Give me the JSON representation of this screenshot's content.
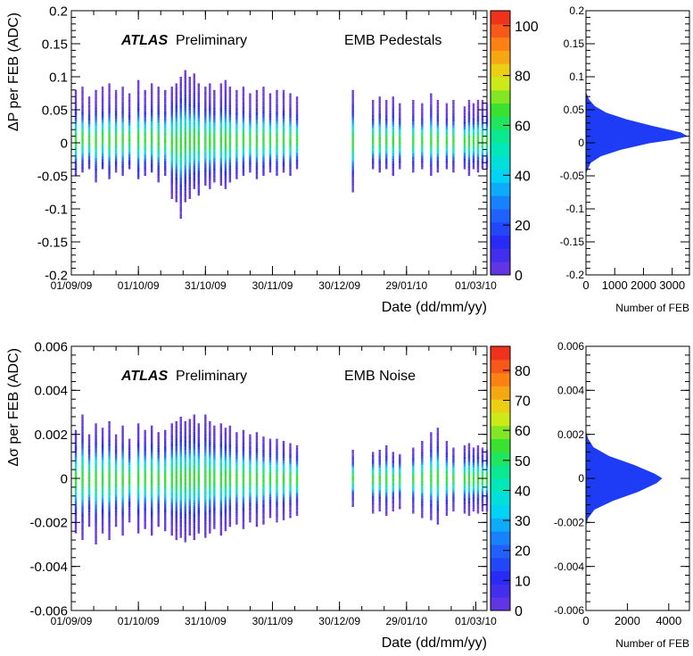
{
  "chart_data": [
    {
      "type": "heatmap",
      "panel": "top-main",
      "label_atlas": "ATLAS",
      "label_prelim": "Preliminary",
      "label_text": "EMB Pedestals",
      "ylabel": "ΔP per FEB (ADC)",
      "xlabel": "Date (dd/mm/yy)",
      "ylim": [
        -0.2,
        0.2
      ],
      "yticks": [
        "0.2",
        "0.15",
        "0.1",
        "0.05",
        "0",
        "-0.05",
        "-0.1",
        "-0.15",
        "-0.2"
      ],
      "xticks": [
        "01/09/09",
        "01/10/09",
        "31/10/09",
        "30/11/09",
        "30/12/09",
        "29/01/10",
        "01/03/10"
      ],
      "colorbar_ticks": [
        "100",
        "80",
        "60",
        "40",
        "20",
        "0"
      ],
      "colorbar_max": 106,
      "runs": [
        {
          "date": "2009-09-03",
          "lo": -0.05,
          "hi": 0.08
        },
        {
          "date": "2009-09-06",
          "lo": -0.045,
          "hi": 0.085
        },
        {
          "date": "2009-09-09",
          "lo": -0.04,
          "hi": 0.07
        },
        {
          "date": "2009-09-12",
          "lo": -0.06,
          "hi": 0.08
        },
        {
          "date": "2009-09-15",
          "lo": -0.04,
          "hi": 0.085
        },
        {
          "date": "2009-09-18",
          "lo": -0.055,
          "hi": 0.09
        },
        {
          "date": "2009-09-21",
          "lo": -0.045,
          "hi": 0.08
        },
        {
          "date": "2009-09-24",
          "lo": -0.05,
          "hi": 0.085
        },
        {
          "date": "2009-09-27",
          "lo": -0.04,
          "hi": 0.075
        },
        {
          "date": "2009-10-01",
          "lo": -0.055,
          "hi": 0.095
        },
        {
          "date": "2009-10-04",
          "lo": -0.05,
          "hi": 0.08
        },
        {
          "date": "2009-10-07",
          "lo": -0.045,
          "hi": 0.09
        },
        {
          "date": "2009-10-10",
          "lo": -0.06,
          "hi": 0.085
        },
        {
          "date": "2009-10-13",
          "lo": -0.05,
          "hi": 0.08
        },
        {
          "date": "2009-10-16",
          "lo": -0.085,
          "hi": 0.085
        },
        {
          "date": "2009-10-18",
          "lo": -0.09,
          "hi": 0.09
        },
        {
          "date": "2009-10-20",
          "lo": -0.115,
          "hi": 0.1
        },
        {
          "date": "2009-10-22",
          "lo": -0.09,
          "hi": 0.11
        },
        {
          "date": "2009-10-24",
          "lo": -0.085,
          "hi": 0.1
        },
        {
          "date": "2009-10-26",
          "lo": -0.07,
          "hi": 0.105
        },
        {
          "date": "2009-10-28",
          "lo": -0.08,
          "hi": 0.09
        },
        {
          "date": "2009-10-31",
          "lo": -0.065,
          "hi": 0.085
        },
        {
          "date": "2009-11-02",
          "lo": -0.07,
          "hi": 0.09
        },
        {
          "date": "2009-11-04",
          "lo": -0.06,
          "hi": 0.08
        },
        {
          "date": "2009-11-07",
          "lo": -0.065,
          "hi": 0.09
        },
        {
          "date": "2009-11-09",
          "lo": -0.07,
          "hi": 0.095
        },
        {
          "date": "2009-11-11",
          "lo": -0.06,
          "hi": 0.085
        },
        {
          "date": "2009-11-14",
          "lo": -0.055,
          "hi": 0.08
        },
        {
          "date": "2009-11-17",
          "lo": -0.05,
          "hi": 0.085
        },
        {
          "date": "2009-11-20",
          "lo": -0.045,
          "hi": 0.075
        },
        {
          "date": "2009-11-23",
          "lo": -0.055,
          "hi": 0.08
        },
        {
          "date": "2009-11-26",
          "lo": -0.05,
          "hi": 0.085
        },
        {
          "date": "2009-11-29",
          "lo": -0.045,
          "hi": 0.075
        },
        {
          "date": "2009-12-02",
          "lo": -0.05,
          "hi": 0.08
        },
        {
          "date": "2009-12-05",
          "lo": -0.045,
          "hi": 0.08
        },
        {
          "date": "2009-12-08",
          "lo": -0.05,
          "hi": 0.075
        },
        {
          "date": "2009-12-11",
          "lo": -0.04,
          "hi": 0.07
        },
        {
          "date": "2010-01-05",
          "lo": -0.075,
          "hi": 0.08
        },
        {
          "date": "2010-01-14",
          "lo": -0.04,
          "hi": 0.065
        },
        {
          "date": "2010-01-17",
          "lo": -0.045,
          "hi": 0.07
        },
        {
          "date": "2010-01-20",
          "lo": -0.04,
          "hi": 0.065
        },
        {
          "date": "2010-01-23",
          "lo": -0.05,
          "hi": 0.07
        },
        {
          "date": "2010-01-26",
          "lo": -0.04,
          "hi": 0.06
        },
        {
          "date": "2010-02-01",
          "lo": -0.045,
          "hi": 0.065
        },
        {
          "date": "2010-02-05",
          "lo": -0.04,
          "hi": 0.06
        },
        {
          "date": "2010-02-09",
          "lo": -0.05,
          "hi": 0.075
        },
        {
          "date": "2010-02-12",
          "lo": -0.045,
          "hi": 0.065
        },
        {
          "date": "2010-02-16",
          "lo": -0.04,
          "hi": 0.06
        },
        {
          "date": "2010-02-19",
          "lo": -0.045,
          "hi": 0.065
        },
        {
          "date": "2010-02-24",
          "lo": -0.04,
          "hi": 0.055
        },
        {
          "date": "2010-02-26",
          "lo": -0.05,
          "hi": 0.065
        },
        {
          "date": "2010-02-28",
          "lo": -0.04,
          "hi": 0.06
        },
        {
          "date": "2010-03-02",
          "lo": -0.045,
          "hi": 0.065
        },
        {
          "date": "2010-03-04",
          "lo": -0.04,
          "hi": 0.065
        },
        {
          "date": "2010-03-06",
          "lo": -0.04,
          "hi": 0.06
        }
      ]
    },
    {
      "type": "bar",
      "panel": "top-projection",
      "orientation": "horizontal",
      "xlabel": "Number of FEB",
      "ylim": [
        -0.2,
        0.2
      ],
      "xlim": [
        0,
        3600
      ],
      "yticks": [
        "0.2",
        "0.15",
        "0.1",
        "0.05",
        "0",
        "-0.05",
        "-0.1",
        "-0.15",
        "-0.2"
      ],
      "xticks": [
        "0",
        "1000",
        "2000",
        "3000"
      ],
      "profile": [
        {
          "y": 0.075,
          "count": 0
        },
        {
          "y": 0.065,
          "count": 100
        },
        {
          "y": 0.055,
          "count": 300
        },
        {
          "y": 0.045,
          "count": 700
        },
        {
          "y": 0.035,
          "count": 1400
        },
        {
          "y": 0.025,
          "count": 2300
        },
        {
          "y": 0.015,
          "count": 3300
        },
        {
          "y": 0.01,
          "count": 3500
        },
        {
          "y": 0.005,
          "count": 3000
        },
        {
          "y": 0.0,
          "count": 2200
        },
        {
          "y": -0.01,
          "count": 1200
        },
        {
          "y": -0.02,
          "count": 500
        },
        {
          "y": -0.03,
          "count": 150
        },
        {
          "y": -0.045,
          "count": 0
        }
      ]
    },
    {
      "type": "heatmap",
      "panel": "bottom-main",
      "label_atlas": "ATLAS",
      "label_prelim": "Preliminary",
      "label_text": "EMB Noise",
      "ylabel": "Δσ per FEB (ADC)",
      "xlabel": "Date (dd/mm/yy)",
      "ylim": [
        -0.006,
        0.006
      ],
      "yticks": [
        "0.006",
        "0.004",
        "0.002",
        "0",
        "-0.002",
        "-0.004",
        "-0.006"
      ],
      "xticks": [
        "01/09/09",
        "01/10/09",
        "31/10/09",
        "30/11/09",
        "30/12/09",
        "29/01/10",
        "01/03/10"
      ],
      "colorbar_ticks": [
        "80",
        "70",
        "60",
        "50",
        "40",
        "30",
        "20",
        "10",
        "0"
      ],
      "colorbar_max": 88,
      "runs": [
        {
          "date": "2009-09-03",
          "lo": -0.0025,
          "hi": 0.0022
        },
        {
          "date": "2009-09-06",
          "lo": -0.0028,
          "hi": 0.0029
        },
        {
          "date": "2009-09-09",
          "lo": -0.0022,
          "hi": 0.002
        },
        {
          "date": "2009-09-12",
          "lo": -0.003,
          "hi": 0.0025
        },
        {
          "date": "2009-09-15",
          "lo": -0.0025,
          "hi": 0.0023
        },
        {
          "date": "2009-09-18",
          "lo": -0.0028,
          "hi": 0.0026
        },
        {
          "date": "2009-09-21",
          "lo": -0.0022,
          "hi": 0.002
        },
        {
          "date": "2009-09-24",
          "lo": -0.0026,
          "hi": 0.0024
        },
        {
          "date": "2009-09-27",
          "lo": -0.002,
          "hi": 0.0018
        },
        {
          "date": "2009-10-01",
          "lo": -0.0025,
          "hi": 0.0025
        },
        {
          "date": "2009-10-04",
          "lo": -0.0023,
          "hi": 0.0022
        },
        {
          "date": "2009-10-07",
          "lo": -0.0026,
          "hi": 0.0024
        },
        {
          "date": "2009-10-10",
          "lo": -0.0022,
          "hi": 0.0021
        },
        {
          "date": "2009-10-13",
          "lo": -0.0024,
          "hi": 0.0022
        },
        {
          "date": "2009-10-16",
          "lo": -0.0026,
          "hi": 0.0025
        },
        {
          "date": "2009-10-18",
          "lo": -0.0028,
          "hi": 0.0026
        },
        {
          "date": "2009-10-20",
          "lo": -0.0027,
          "hi": 0.0028
        },
        {
          "date": "2009-10-22",
          "lo": -0.0029,
          "hi": 0.0026
        },
        {
          "date": "2009-10-24",
          "lo": -0.0026,
          "hi": 0.0027
        },
        {
          "date": "2009-10-26",
          "lo": -0.0028,
          "hi": 0.0029
        },
        {
          "date": "2009-10-28",
          "lo": -0.0025,
          "hi": 0.0025
        },
        {
          "date": "2009-10-31",
          "lo": -0.0027,
          "hi": 0.0029
        },
        {
          "date": "2009-11-02",
          "lo": -0.0025,
          "hi": 0.0026
        },
        {
          "date": "2009-11-04",
          "lo": -0.0023,
          "hi": 0.0024
        },
        {
          "date": "2009-11-07",
          "lo": -0.0026,
          "hi": 0.0025
        },
        {
          "date": "2009-11-09",
          "lo": -0.0024,
          "hi": 0.0023
        },
        {
          "date": "2009-11-11",
          "lo": -0.0022,
          "hi": 0.0024
        },
        {
          "date": "2009-11-14",
          "lo": -0.0021,
          "hi": 0.0021
        },
        {
          "date": "2009-11-17",
          "lo": -0.0023,
          "hi": 0.0022
        },
        {
          "date": "2009-11-20",
          "lo": -0.002,
          "hi": 0.002
        },
        {
          "date": "2009-11-23",
          "lo": -0.0022,
          "hi": 0.0021
        },
        {
          "date": "2009-11-26",
          "lo": -0.0021,
          "hi": 0.0019
        },
        {
          "date": "2009-11-29",
          "lo": -0.0018,
          "hi": 0.0018
        },
        {
          "date": "2009-12-02",
          "lo": -0.002,
          "hi": 0.0018
        },
        {
          "date": "2009-12-05",
          "lo": -0.0019,
          "hi": 0.0017
        },
        {
          "date": "2009-12-08",
          "lo": -0.0018,
          "hi": 0.0016
        },
        {
          "date": "2009-12-11",
          "lo": -0.0017,
          "hi": 0.0015
        },
        {
          "date": "2010-01-05",
          "lo": -0.0013,
          "hi": 0.0013
        },
        {
          "date": "2010-01-14",
          "lo": -0.0016,
          "hi": 0.0012
        },
        {
          "date": "2010-01-17",
          "lo": -0.0015,
          "hi": 0.0013
        },
        {
          "date": "2010-01-20",
          "lo": -0.0017,
          "hi": 0.0015
        },
        {
          "date": "2010-01-23",
          "lo": -0.0015,
          "hi": 0.0012
        },
        {
          "date": "2010-01-26",
          "lo": -0.0014,
          "hi": 0.0011
        },
        {
          "date": "2010-02-01",
          "lo": -0.0016,
          "hi": 0.0014
        },
        {
          "date": "2010-02-05",
          "lo": -0.0018,
          "hi": 0.0017
        },
        {
          "date": "2010-02-09",
          "lo": -0.0019,
          "hi": 0.0021
        },
        {
          "date": "2010-02-12",
          "lo": -0.0021,
          "hi": 0.0023
        },
        {
          "date": "2010-02-16",
          "lo": -0.0017,
          "hi": 0.0017
        },
        {
          "date": "2010-02-19",
          "lo": -0.0015,
          "hi": 0.0014
        },
        {
          "date": "2010-02-24",
          "lo": -0.0016,
          "hi": 0.0015
        },
        {
          "date": "2010-02-26",
          "lo": -0.0017,
          "hi": 0.0016
        },
        {
          "date": "2010-02-28",
          "lo": -0.0015,
          "hi": 0.0014
        },
        {
          "date": "2010-03-02",
          "lo": -0.0016,
          "hi": 0.0015
        },
        {
          "date": "2010-03-04",
          "lo": -0.0015,
          "hi": 0.0014
        },
        {
          "date": "2010-03-06",
          "lo": -0.0015,
          "hi": 0.0013
        }
      ]
    },
    {
      "type": "bar",
      "panel": "bottom-projection",
      "orientation": "horizontal",
      "xlabel": "Number of FEB",
      "ylim": [
        -0.006,
        0.006
      ],
      "xlim": [
        0,
        5000
      ],
      "yticks": [
        "0.006",
        "0.004",
        "0.002",
        "0",
        "-0.002",
        "-0.004",
        "-0.006"
      ],
      "xticks": [
        "0",
        "2000",
        "4000"
      ],
      "profile": [
        {
          "y": 0.0021,
          "count": 0
        },
        {
          "y": 0.0018,
          "count": 80
        },
        {
          "y": 0.0014,
          "count": 350
        },
        {
          "y": 0.001,
          "count": 1100
        },
        {
          "y": 0.0006,
          "count": 2300
        },
        {
          "y": 0.0002,
          "count": 3300
        },
        {
          "y": 0.0,
          "count": 3650
        },
        {
          "y": -0.0002,
          "count": 3400
        },
        {
          "y": -0.0006,
          "count": 2500
        },
        {
          "y": -0.001,
          "count": 1300
        },
        {
          "y": -0.0014,
          "count": 400
        },
        {
          "y": -0.0018,
          "count": 80
        },
        {
          "y": -0.0021,
          "count": 0
        }
      ]
    }
  ]
}
